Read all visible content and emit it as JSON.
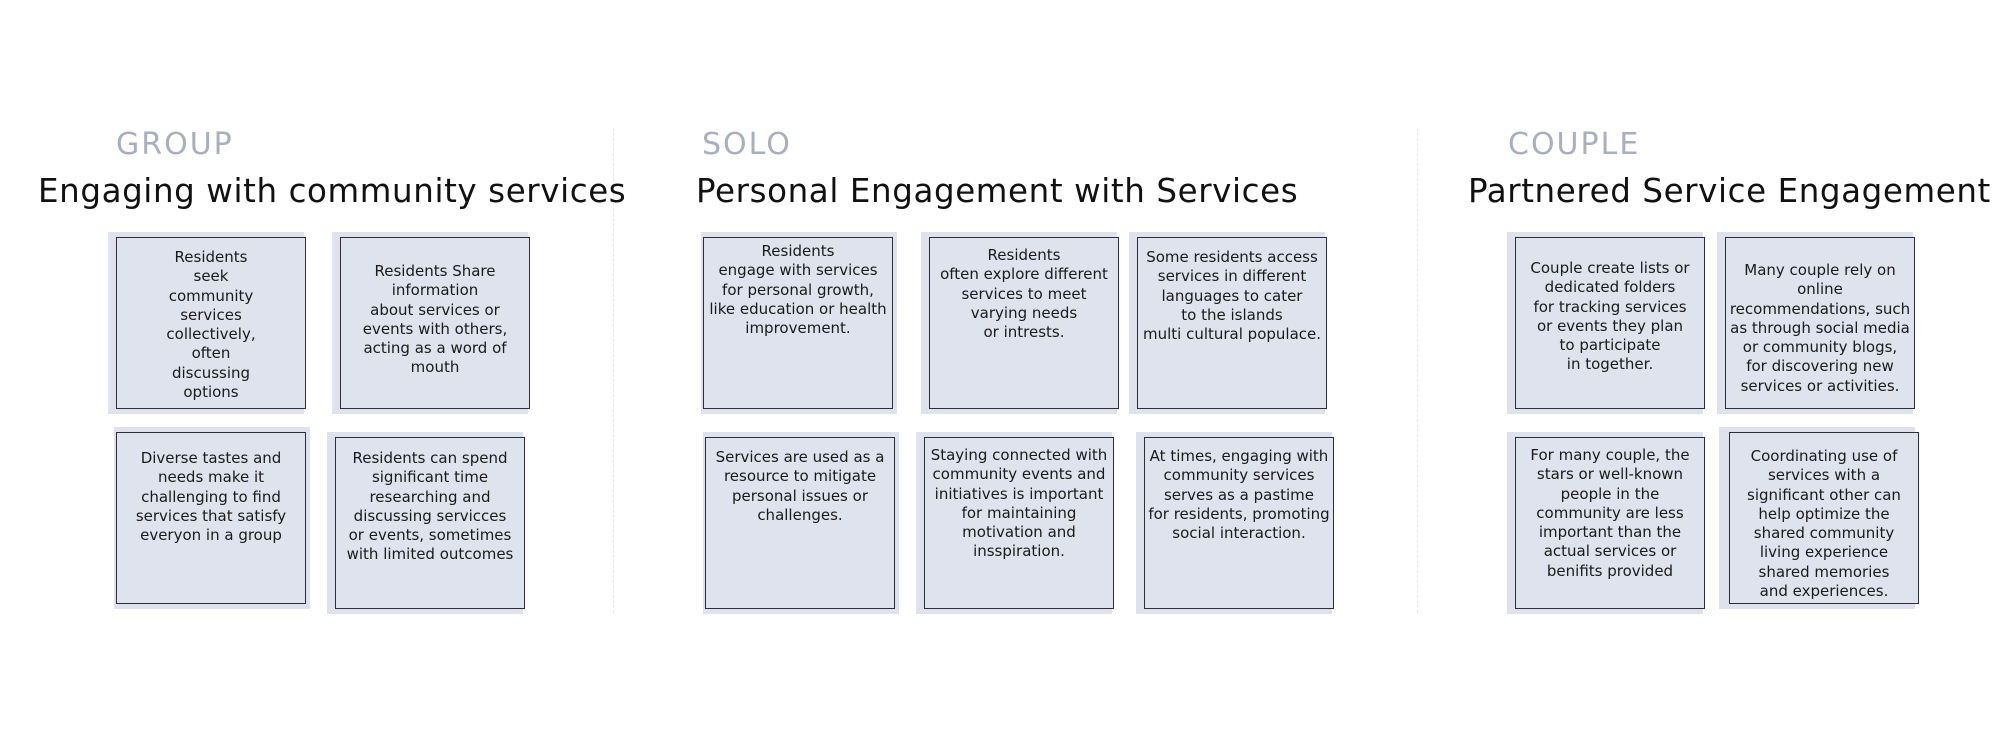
{
  "sections": [
    {
      "kicker": "GROUP",
      "title": "Engaging with community services",
      "notes": [
        "Residents\nseek\ncommunity\nservices\ncollectively,\noften\ndiscussing\noptions",
        "Residents Share\ninformation\nabout services or\nevents with others,\nacting as a word of\nmouth",
        "Diverse tastes and\nneeds make it\nchallenging to find\nservices that satisfy\neveryon in a group",
        "Residents can spend\nsignificant time\nresearching and\ndiscussing servicces\nor events, sometimes\nwith limited outcomes"
      ]
    },
    {
      "kicker": "SOLO",
      "title": "Personal Engagement with Services",
      "notes": [
        "Residents\nengage with services\nfor personal growth,\nlike education or health\nimprovement.",
        "Residents\noften explore different\nservices to meet\nvarying needs\nor intrests.",
        "Some residents access\nservices in different\nlanguages to cater\nto the islands\nmulti cultural populace.",
        "Services are used as a\nresource to mitigate\npersonal issues or\nchallenges.",
        "Staying connected with\ncommunity events and\ninitiatives is important\nfor maintaining\nmotivation and\ninsspiration.",
        "At times, engaging with\ncommunity services\nserves as a pastime\nfor residents, promoting\nsocial interaction."
      ]
    },
    {
      "kicker": "COUPLE",
      "title": "Partnered Service Engagement",
      "notes": [
        "Couple create lists or\ndedicated folders\nfor tracking services\nor events they plan\nto participate\nin together.",
        "Many couple rely on\nonline\nrecommendations, such\nas through social media\nor community blogs,\nfor discovering new\nservices or activities.",
        "For many couple, the\nstars or well-known\npeople in the\ncommunity are less\nimportant than the\nactual services or\nbenifits provided",
        "Coordinating use of\nservices with a\nsignificant other can\nhelp optimize the\nshared community\nliving experience\nshared memories\nand experiences."
      ]
    }
  ]
}
